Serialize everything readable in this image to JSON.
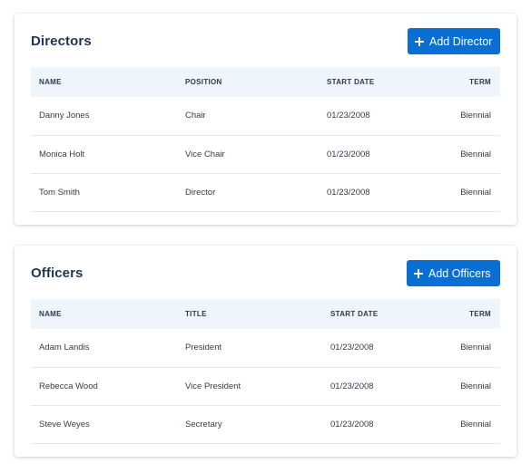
{
  "directors": {
    "title": "Directors",
    "add_button_label": "Add Director",
    "columns": [
      "NAME",
      "POSITION",
      "START DATE",
      "TERM"
    ],
    "rows": [
      {
        "name": "Danny Jones",
        "position": "Chair",
        "start_date": "01/23/2008",
        "term": "Biennial"
      },
      {
        "name": "Monica Holt",
        "position": "Vice Chair",
        "start_date": "01/23/2008",
        "term": "Biennial"
      },
      {
        "name": "Tom Smith",
        "position": "Director",
        "start_date": "01/23/2008",
        "term": "Biennial"
      }
    ]
  },
  "officers": {
    "title": "Officers",
    "add_button_label": "Add Officers",
    "columns": [
      "NAME",
      "TITLE",
      "START DATE",
      "TERM"
    ],
    "rows": [
      {
        "name": "Adam Landis",
        "title": "President",
        "start_date": "01/23/2008",
        "term": "Biennial"
      },
      {
        "name": "Rebecca Wood",
        "title": "Vice President",
        "start_date": "01/23/2008",
        "term": "Biennial"
      },
      {
        "name": "Steve Weyes",
        "title": "Secretary",
        "start_date": "01/23/2008",
        "term": "Biennial"
      }
    ]
  },
  "colors": {
    "primary_button": "#0a6fd2",
    "header_row_bg": "#eff5fb",
    "title_text": "#1f3552"
  },
  "icons": {
    "add_button_icon": "plus-icon"
  }
}
